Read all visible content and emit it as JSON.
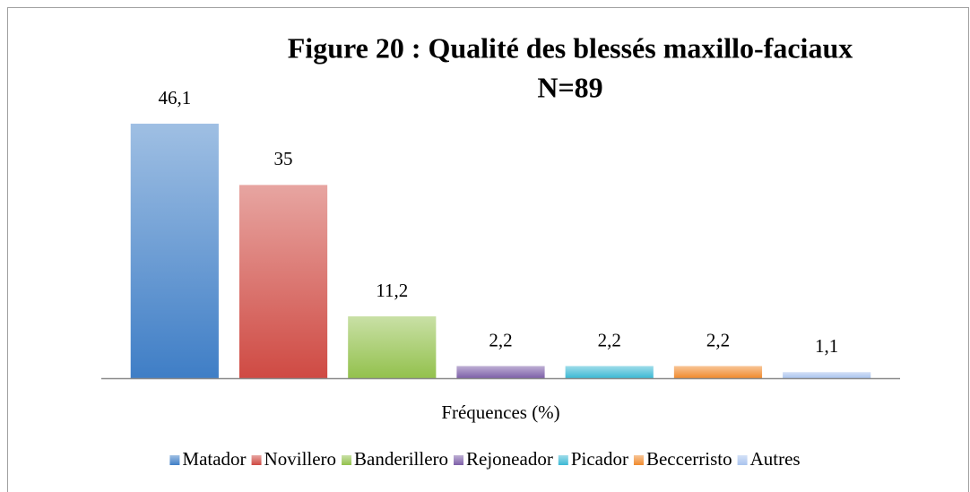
{
  "chart_data": {
    "type": "bar",
    "title": "Figure 20 : Qualité des blessés maxillo-faciaux",
    "subtitle": "N=89",
    "categories": [
      "Fréquences (%)"
    ],
    "ylim": [
      0,
      50
    ],
    "series": [
      {
        "name": "Matador",
        "color": "#3f7ec6",
        "values": [
          46.1
        ],
        "value_labels": [
          "46,1"
        ]
      },
      {
        "name": "Novillero",
        "color": "#cf4a43",
        "values": [
          35
        ],
        "value_labels": [
          "35"
        ]
      },
      {
        "name": "Banderillero",
        "color": "#93c14d",
        "values": [
          11.2
        ],
        "value_labels": [
          "11,2"
        ]
      },
      {
        "name": "Rejoneador",
        "color": "#7d5fa8",
        "values": [
          2.2
        ],
        "value_labels": [
          "2,2"
        ]
      },
      {
        "name": "Picador",
        "color": "#3cb8d4",
        "values": [
          2.2
        ],
        "value_labels": [
          "2,2"
        ]
      },
      {
        "name": "Beccerristo",
        "color": "#f08a2d",
        "values": [
          2.2
        ],
        "value_labels": [
          "2,2"
        ]
      },
      {
        "name": "Autres",
        "color": "#a9c3ee",
        "values": [
          1.1
        ],
        "value_labels": [
          "1,1"
        ]
      }
    ]
  }
}
